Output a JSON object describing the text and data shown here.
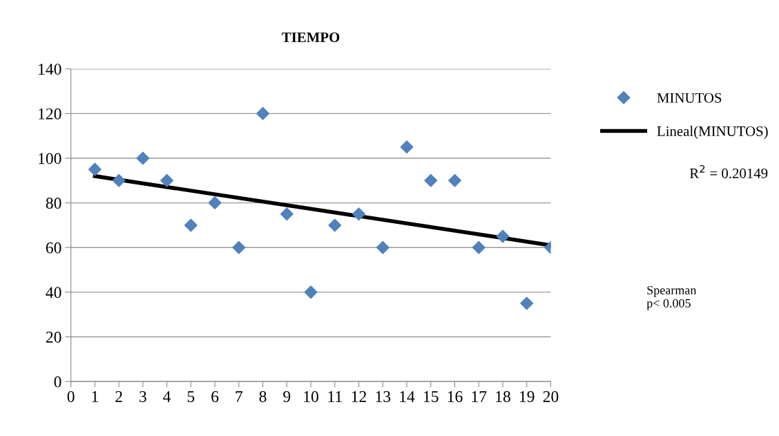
{
  "chart_data": {
    "type": "scatter",
    "title": "TIEMPO",
    "x": [
      1,
      2,
      3,
      4,
      5,
      6,
      7,
      8,
      9,
      10,
      11,
      12,
      13,
      14,
      15,
      16,
      17,
      18,
      19,
      20
    ],
    "series": [
      {
        "name": "MINUTOS",
        "color": "#4f81bd",
        "marker": "diamond",
        "values": [
          95,
          90,
          100,
          90,
          70,
          80,
          60,
          120,
          75,
          40,
          70,
          75,
          60,
          105,
          90,
          90,
          60,
          65,
          35,
          60
        ]
      },
      {
        "name": "Lineal(MINUTOS)",
        "type": "line",
        "color": "#000000",
        "marker": "none",
        "line_style": "solid",
        "x": [
          1,
          20
        ],
        "values": [
          92,
          61
        ]
      }
    ],
    "xlim": [
      0,
      20
    ],
    "xticks": [
      0,
      1,
      2,
      3,
      4,
      5,
      6,
      7,
      8,
      9,
      10,
      11,
      12,
      13,
      14,
      15,
      16,
      17,
      18,
      19,
      20
    ],
    "ylim": [
      0,
      140
    ],
    "yticks": [
      0,
      20,
      40,
      60,
      80,
      100,
      120,
      140
    ],
    "grid": "y",
    "legend": "right",
    "annotations": [
      "R$^{2}$ = 0.20149",
      "Spearman\np< 0.005"
    ]
  }
}
